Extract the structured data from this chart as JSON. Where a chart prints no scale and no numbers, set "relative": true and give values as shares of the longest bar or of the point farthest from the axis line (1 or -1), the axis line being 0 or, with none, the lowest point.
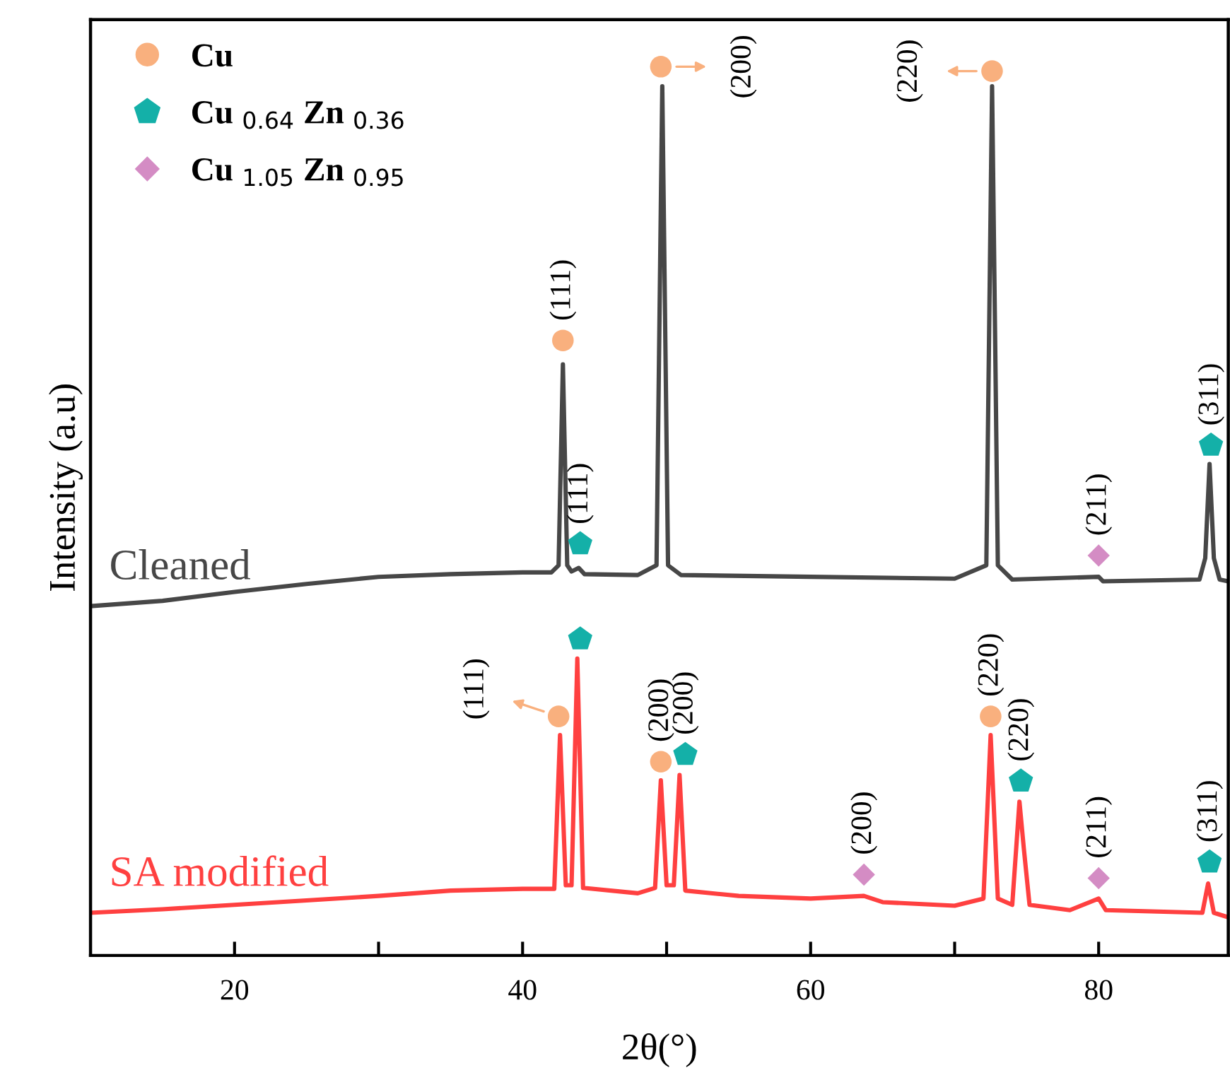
{
  "chart_data": {
    "type": "line",
    "relative": true,
    "xlabel": "2θ(°)",
    "ylabel": "Intensity (a.u)",
    "xlim": [
      10,
      89
    ],
    "xticks": [
      20,
      {
        "value": 30,
        "label": null
      },
      40,
      {
        "value": 50,
        "label": null
      },
      60,
      {
        "value": 70,
        "label": null
      },
      80
    ],
    "legend": "top left",
    "grid": false,
    "series": [
      {
        "name": "Cleaned",
        "color": "#474747",
        "x": [
          10,
          15,
          20,
          25,
          30,
          35,
          40,
          42,
          42.5,
          42.8,
          43.1,
          43.4,
          43.9,
          44.3,
          48,
          49.3,
          49.7,
          50.1,
          51,
          60,
          70,
          72.2,
          72.6,
          73.0,
          74,
          80.0,
          80.3,
          87,
          87.4,
          87.7,
          88.0,
          88.4,
          89
        ],
        "values": [
          0.393,
          0.399,
          0.409,
          0.418,
          0.426,
          0.429,
          0.431,
          0.431,
          0.439,
          0.665,
          0.439,
          0.432,
          0.436,
          0.429,
          0.428,
          0.439,
          0.978,
          0.439,
          0.428,
          0.426,
          0.424,
          0.439,
          0.978,
          0.439,
          0.423,
          0.426,
          0.421,
          0.423,
          0.447,
          0.553,
          0.447,
          0.423,
          0.421
        ]
      },
      {
        "name": "SA modified",
        "color": "#ff4040",
        "x": [
          10,
          15,
          20,
          25,
          30,
          35,
          40,
          42.2,
          42.6,
          43.0,
          43.4,
          43.8,
          44.2,
          48,
          49.2,
          49.6,
          50.0,
          50.5,
          50.9,
          51.3,
          55,
          60,
          63.7,
          65,
          70,
          72.0,
          72.5,
          73.0,
          74.0,
          74.5,
          74.8,
          75.2,
          78,
          80.0,
          80.5,
          87.2,
          87.6,
          88.0,
          89
        ],
        "values": [
          0.048,
          0.052,
          0.057,
          0.062,
          0.067,
          0.073,
          0.075,
          0.075,
          0.248,
          0.079,
          0.079,
          0.334,
          0.076,
          0.07,
          0.076,
          0.197,
          0.079,
          0.079,
          0.203,
          0.073,
          0.067,
          0.064,
          0.067,
          0.06,
          0.056,
          0.064,
          0.248,
          0.064,
          0.057,
          0.173,
          0.121,
          0.057,
          0.051,
          0.064,
          0.051,
          0.048,
          0.081,
          0.048,
          0.043
        ]
      },
      {
        "name": "Cu",
        "type": "scatter",
        "marker": "circle",
        "color": "#f9b07e",
        "x": [
          42.8,
          49.6,
          72.6,
          42.5,
          49.6,
          72.5
        ],
        "values": [
          0.692,
          1.0,
          0.995,
          0.269,
          0.218,
          0.269
        ]
      },
      {
        "name": "Cu $_{0.64}$ Zn $_{0.36}$",
        "type": "scatter",
        "color": "#14b0a8",
        "x": [
          44.0,
          87.8,
          44.0,
          51.3,
          74.6,
          87.7
        ],
        "values": [
          0.463,
          0.574,
          0.356,
          0.226,
          0.196,
          0.105
        ]
      },
      {
        "name": "Cu $_{1.05}$ Zn $_{0.95}$",
        "type": "scatter",
        "marker": "diamond",
        "color": "#d48cc4",
        "x": [
          80.0,
          63.7,
          80.0
        ],
        "values": [
          0.45,
          0.091,
          0.087
        ]
      }
    ],
    "annotations": [
      {
        "text": "(111)",
        "x": 42.8,
        "y": 0.692
      },
      {
        "text": "(111)",
        "x": 44.0,
        "y": 0.463
      },
      {
        "text": "(200)",
        "x": 49.6,
        "y": 1.0
      },
      {
        "text": "(220)",
        "x": 72.6,
        "y": 0.995
      },
      {
        "text": "(211)",
        "x": 80.0,
        "y": 0.45
      },
      {
        "text": "(311)",
        "x": 87.8,
        "y": 0.574
      },
      {
        "text": "(111)",
        "x": 42.5,
        "y": 0.269
      },
      {
        "text": "(200)",
        "x": 49.6,
        "y": 0.218
      },
      {
        "text": "(200)",
        "x": 51.3,
        "y": 0.226
      },
      {
        "text": "(200)",
        "x": 63.7,
        "y": 0.091
      },
      {
        "text": "(220)",
        "x": 72.5,
        "y": 0.269
      },
      {
        "text": "(220)",
        "x": 74.6,
        "y": 0.196
      },
      {
        "text": "(211)",
        "x": 80.0,
        "y": 0.087
      },
      {
        "text": "(311)",
        "x": 87.7,
        "y": 0.105
      }
    ]
  }
}
